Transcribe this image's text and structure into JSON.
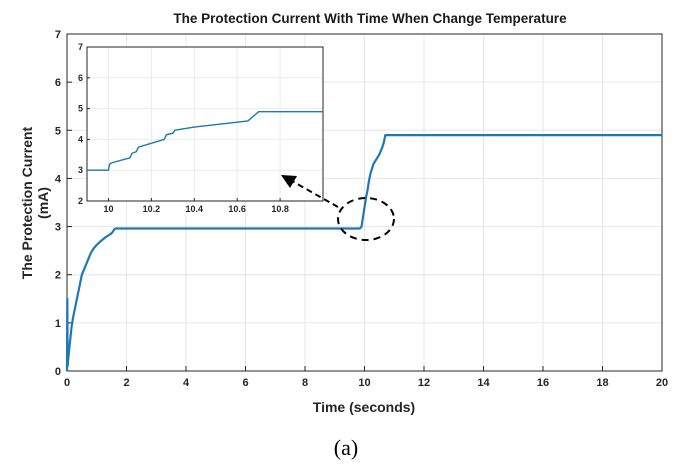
{
  "chart_data": {
    "type": "line",
    "title": "The Protection Current With Time When Change Temperature",
    "xlabel": "Time (seconds)",
    "ylabel_line1": "The Protection Current",
    "ylabel_line2": "(mA)",
    "xlim": [
      0,
      20
    ],
    "ylim": [
      0,
      7
    ],
    "xticks": [
      "0",
      "2",
      "4",
      "6",
      "8",
      "10",
      "12",
      "14",
      "16",
      "18",
      "20"
    ],
    "yticks": [
      "0",
      "1",
      "2",
      "3",
      "4",
      "5",
      "6",
      "7"
    ],
    "grid": true,
    "color": "#1f77b4",
    "x": [
      0,
      0.01,
      0.02,
      0.05,
      0.1,
      0.15,
      0.2,
      0.3,
      0.4,
      0.5,
      0.6,
      0.7,
      0.8,
      0.9,
      1.0,
      1.1,
      1.2,
      1.3,
      1.4,
      1.5,
      1.6,
      1.65,
      1.7,
      2,
      4,
      6,
      8,
      9.85,
      9.9,
      9.95,
      10.0,
      10.05,
      10.1,
      10.15,
      10.2,
      10.25,
      10.3,
      10.4,
      10.5,
      10.6,
      10.65,
      10.7,
      20
    ],
    "y": [
      0,
      1.5,
      0.1,
      0.3,
      0.6,
      0.9,
      1.1,
      1.4,
      1.7,
      2.0,
      2.15,
      2.3,
      2.45,
      2.55,
      2.62,
      2.68,
      2.73,
      2.78,
      2.82,
      2.86,
      2.95,
      2.96,
      2.96,
      2.96,
      2.96,
      2.96,
      2.96,
      2.96,
      3.0,
      3.2,
      3.4,
      3.6,
      3.75,
      3.95,
      4.1,
      4.2,
      4.3,
      4.4,
      4.5,
      4.65,
      4.75,
      4.9,
      4.9
    ],
    "inset": {
      "xlim": [
        9.9,
        11.0
      ],
      "ylim": [
        2,
        7
      ],
      "xticks": [
        "10",
        "10.2",
        "10.4",
        "10.6",
        "10.8"
      ],
      "xtick_values": [
        10,
        10.2,
        10.4,
        10.6,
        10.8
      ],
      "yticks": [
        "2",
        "3",
        "4",
        "5",
        "6",
        "7"
      ],
      "x": [
        9.9,
        10.0,
        10.005,
        10.02,
        10.1,
        10.11,
        10.13,
        10.14,
        10.26,
        10.27,
        10.3,
        10.31,
        10.4,
        10.65,
        10.7,
        11.0
      ],
      "y": [
        3.0,
        3.0,
        3.2,
        3.25,
        3.4,
        3.55,
        3.6,
        3.75,
        4.0,
        4.15,
        4.2,
        4.3,
        4.4,
        4.6,
        4.9,
        4.9
      ]
    },
    "annotation": "dashed ellipse around x≈10 with dashed arrow pointing to inset"
  },
  "caption": "(a)"
}
